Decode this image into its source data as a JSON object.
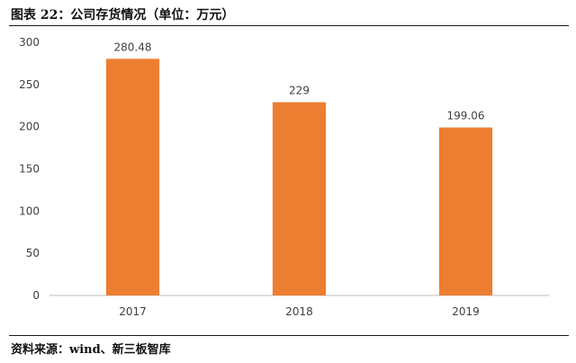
{
  "header": {
    "title": "图表 22：公司存货情况（单位：万元）"
  },
  "footer": {
    "source": "资料来源：wind、新三板智库"
  },
  "colors": {
    "bar": "#ed7d31",
    "axis": "#bfbfbf",
    "tick_text": "#404040",
    "label_text": "#404040"
  },
  "chart_data": {
    "type": "bar",
    "title": "",
    "xlabel": "",
    "ylabel": "",
    "categories": [
      "2017",
      "2018",
      "2019"
    ],
    "values": [
      280.48,
      229,
      199.06
    ],
    "value_labels": [
      "280.48",
      "229",
      "199.06"
    ],
    "ylim": [
      0,
      300
    ],
    "yticks": [
      0,
      50,
      100,
      150,
      200,
      250,
      300
    ],
    "grid": false,
    "legend": "none"
  }
}
